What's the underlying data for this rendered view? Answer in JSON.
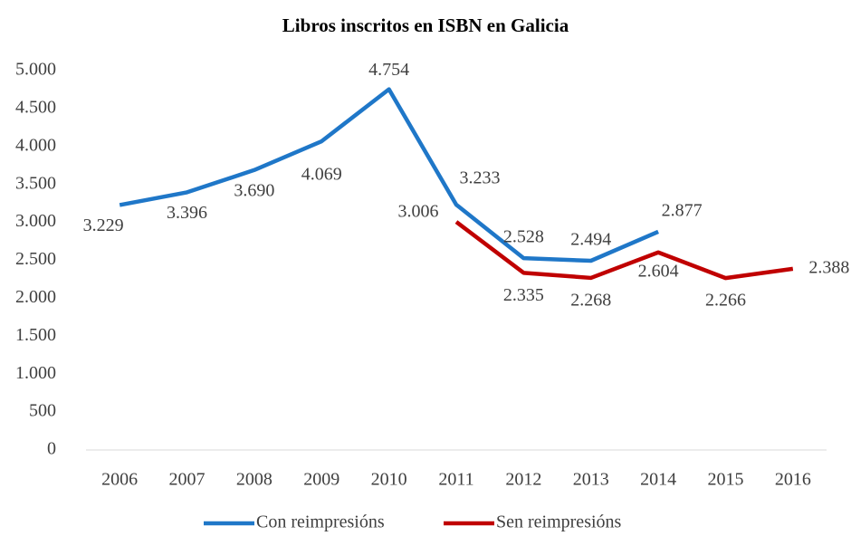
{
  "chart_data": {
    "type": "line",
    "title": "Libros inscritos en ISBN en Galicia",
    "categories": [
      "2006",
      "2007",
      "2008",
      "2009",
      "2010",
      "2011",
      "2012",
      "2013",
      "2014",
      "2015",
      "2016"
    ],
    "series": [
      {
        "name": "Con reimpresións",
        "color": "#1f77c8",
        "values": [
          3229,
          3396,
          3690,
          4069,
          4754,
          3233,
          2528,
          2494,
          2877,
          null,
          null
        ],
        "value_labels": [
          "3.229",
          "3.396",
          "3.690",
          "4.069",
          "4.754",
          "3.233",
          "2.528",
          "2.494",
          "2.877",
          null,
          null
        ]
      },
      {
        "name": "Sen reimpresións",
        "color": "#c00000",
        "values": [
          null,
          null,
          null,
          null,
          null,
          3006,
          2335,
          2268,
          2604,
          2266,
          2388
        ],
        "value_labels": [
          null,
          null,
          null,
          null,
          null,
          "3.006",
          "2.335",
          "2.268",
          "2.604",
          "2.266",
          "2.388"
        ]
      }
    ],
    "ylim": [
      0,
      5000
    ],
    "yticks": [
      0,
      500,
      {
        "value": 1000,
        "label": "1.000"
      },
      {
        "value": 1500,
        "label": "1.500"
      },
      {
        "value": 2000,
        "label": "2.000"
      },
      {
        "value": 2500,
        "label": "2.500"
      },
      {
        "value": 3000,
        "label": "3.000"
      },
      {
        "value": 3500,
        "label": "3.500"
      },
      {
        "value": 4000,
        "label": "4.000"
      },
      {
        "value": 4500,
        "label": "4.500"
      },
      {
        "value": 5000,
        "label": "5.000"
      }
    ],
    "grid": false
  }
}
